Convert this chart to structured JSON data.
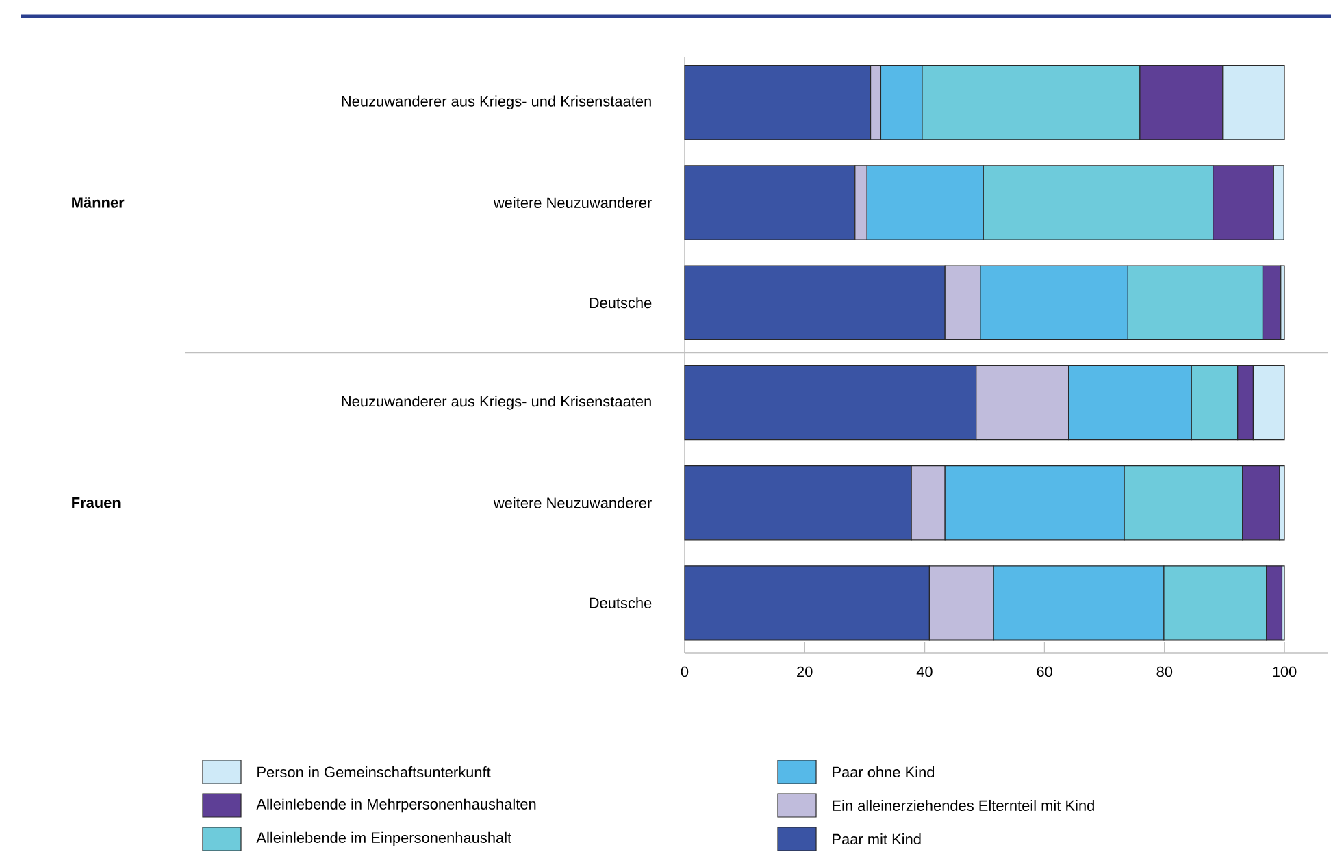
{
  "chart_data": {
    "type": "bar",
    "orientation": "horizontal",
    "stacked": true,
    "categories": [
      "Neuzuwanderer aus Kriegs- und Krisenstaaten",
      "weitere Neuzuwanderer",
      "Deutsche",
      "Neuzuwanderer aus Kriegs- und Krisenstaaten",
      "weitere Neuzuwanderer",
      "Deutsche"
    ],
    "annotations": [
      "Männer",
      "Frauen"
    ],
    "series": [
      {
        "name": "Paar mit Kind",
        "color": "#3a54a4",
        "values": [
          31.0,
          28.4,
          43.4,
          48.6,
          37.8,
          40.8
        ]
      },
      {
        "name": "Ein alleinerziehendes Elternteil mit Kind",
        "color": "#c0bcdc",
        "values": [
          1.7,
          2.0,
          5.9,
          15.4,
          5.6,
          10.7
        ]
      },
      {
        "name": "Paar ohne Kind",
        "color": "#56b9e8",
        "values": [
          6.9,
          19.4,
          24.6,
          20.5,
          29.9,
          28.4
        ]
      },
      {
        "name": "Alleinlebende im Einpersonenhaushalt",
        "color": "#6ecbdb",
        "values": [
          36.3,
          38.3,
          22.5,
          7.7,
          19.7,
          17.1
        ]
      },
      {
        "name": "Alleinlebende in Mehrpersonenhaushalten",
        "color": "#5e3f96",
        "values": [
          13.8,
          10.1,
          3.0,
          2.6,
          6.2,
          2.6
        ]
      },
      {
        "name": "Person in Gemeinschaftsunterkunft",
        "color": "#cfeaf8",
        "values": [
          10.3,
          1.7,
          0.6,
          5.2,
          0.8,
          0.4
        ]
      }
    ],
    "xlim": [
      0,
      100
    ],
    "xticks": [
      0,
      20,
      40,
      60,
      80,
      100
    ],
    "grid": false,
    "legend": "bottom"
  }
}
